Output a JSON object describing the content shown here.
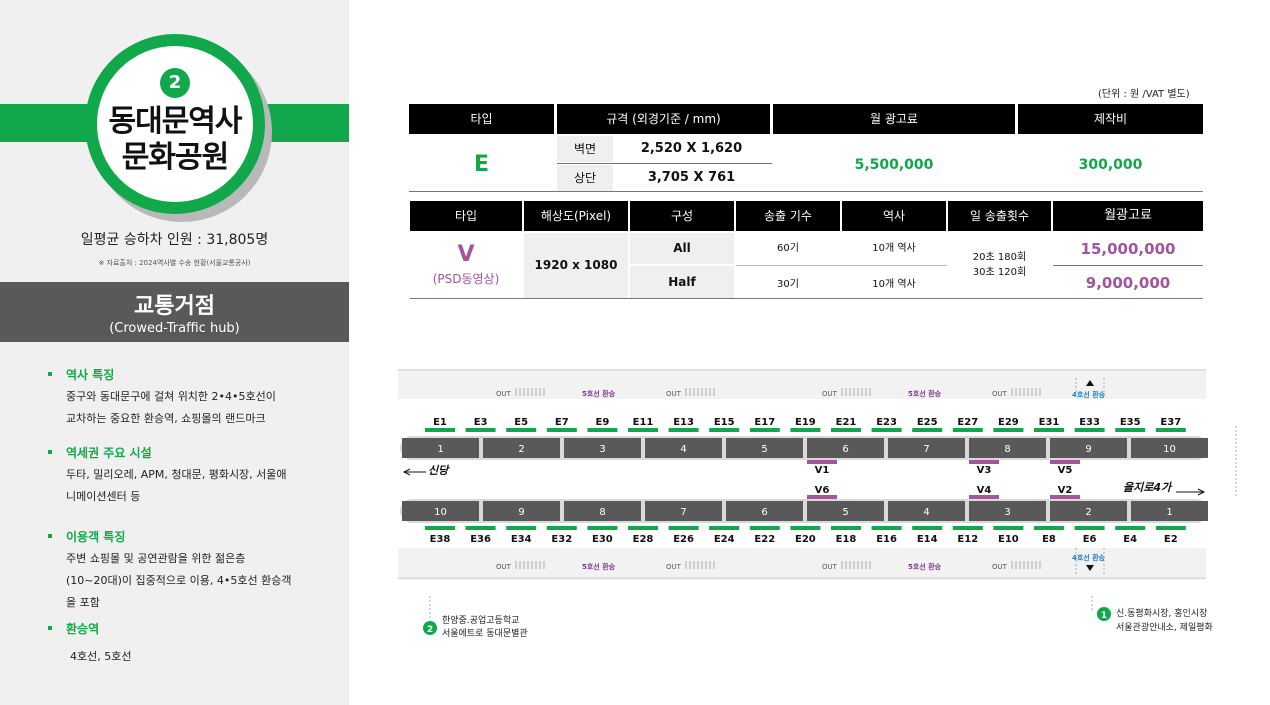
{
  "station": {
    "line_number": "2",
    "name_line1": "동대문역사",
    "name_line2": "문화공원",
    "ridership": "일평균 승하차 인원 : 31,805명",
    "source": "※ 자료출처 : 2024역사별 수송 현황(서울교통공사)"
  },
  "hub": {
    "title": "교통거점",
    "subtitle": "(Crowed-Traffic hub)"
  },
  "sections": [
    {
      "title": "역사 특징",
      "lines": [
        "중구와 동대문구에 걸쳐 위치한 2•4•5호선이",
        "교차하는 중요한 환승역, 쇼핑몰의 랜드마크"
      ]
    },
    {
      "title": "역세권 주요 시설",
      "lines": [
        "두타, 밀리오레, APM, 청대문, 평화시장, 서울애",
        "니메이션센터 등"
      ]
    },
    {
      "title": "이용객 특징",
      "lines": [
        "주변 쇼핑몰 및 공연관람을 위한 젊은층",
        "(10~20대)이 집중적으로 이용, 4•5호선 환승객",
        "을 포함"
      ]
    },
    {
      "title": "환승역",
      "lines": [
        "4호선, 5호선"
      ]
    }
  ],
  "unit_note": "(단위 : 원 /VAT 별도)",
  "table_e": {
    "headers": [
      "타입",
      "규격 (외경기준 / mm)",
      "월 광고료",
      "제작비"
    ],
    "type": "E",
    "rows": [
      {
        "label": "벽면",
        "size": "2,520 X 1,620"
      },
      {
        "label": "상단",
        "size": "3,705 X 761"
      }
    ],
    "monthly_fee": "5,500,000",
    "production_cost": "300,000"
  },
  "table_v": {
    "headers": [
      "타입",
      "해상도(Pixel)",
      "구성",
      "송출 기수",
      "역사",
      "일 송출횟수",
      "월광고료"
    ],
    "type": "V",
    "type_sub": "(PSD동영상)",
    "resolution": "1920 x 1080",
    "rows": [
      {
        "config": "All",
        "units": "60기",
        "stations": "10개 역사",
        "fee": "15,000,000"
      },
      {
        "config": "Half",
        "units": "30기",
        "stations": "10개 역사",
        "fee": "9,000,000"
      }
    ],
    "daily_line1": "20초 180회",
    "daily_line2": "30초 120회"
  },
  "map": {
    "out_label": "OUT",
    "transfer5": "5호선 환승",
    "transfer4": "4호선 환승",
    "top_codes": [
      "E1",
      "E3",
      "E5",
      "E7",
      "E9",
      "E11",
      "E13",
      "E15",
      "E17",
      "E19",
      "E21",
      "E23",
      "E25",
      "E27",
      "E29",
      "E31",
      "E33",
      "E35",
      "E37"
    ],
    "bottom_codes": [
      "E38",
      "E36",
      "E34",
      "E32",
      "E30",
      "E28",
      "E26",
      "E24",
      "E22",
      "E20",
      "E18",
      "E16",
      "E14",
      "E12",
      "E10",
      "E8",
      "E6",
      "E4",
      "E2"
    ],
    "top_doors": [
      "1",
      "2",
      "3",
      "4",
      "5",
      "6",
      "7",
      "8",
      "9",
      "10"
    ],
    "bottom_doors": [
      "10",
      "9",
      "8",
      "7",
      "6",
      "5",
      "4",
      "3",
      "2",
      "1"
    ],
    "v_top": [
      "V1",
      "V3",
      "V5"
    ],
    "v_bottom": [
      "V6",
      "V4",
      "V2"
    ],
    "dir_left": "신당",
    "dir_right": "을지로4가",
    "exit2_line1": "한양중.공업고등학교",
    "exit2_line2": "서울에트로 동대문별관",
    "exit1_line1": "신.동평화시장, 홍인시장",
    "exit1_line2": "서울관광안내소, 제일평화",
    "exit2_num": "2",
    "exit1_num": "1"
  },
  "colors": {
    "green": "#10a84a",
    "purple": "#a0559c",
    "dark": "#595959"
  }
}
